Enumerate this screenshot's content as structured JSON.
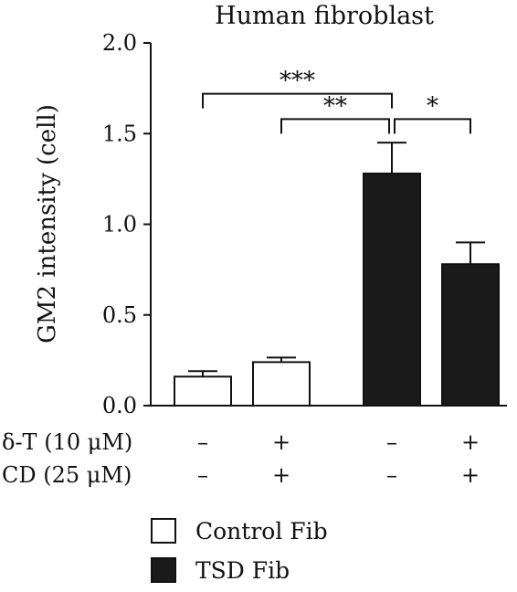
{
  "chart_data": {
    "type": "bar",
    "title": "Human fibroblast",
    "ylabel": "GM2 intensity (cell)",
    "xlabel": "",
    "ylim": [
      0,
      2.0
    ],
    "yticks": [
      "0.0",
      "0.5",
      "1.0",
      "1.5",
      "2.0"
    ],
    "bars": [
      {
        "group": "Control Fib",
        "value": 0.16,
        "error": 0.03
      },
      {
        "group": "Control Fib",
        "value": 0.24,
        "error": 0.025
      },
      {
        "group": "TSD Fib",
        "value": 1.28,
        "error": 0.17
      },
      {
        "group": "TSD Fib",
        "value": 0.78,
        "error": 0.12
      }
    ],
    "conditions": [
      {
        "label": "δ-T (10 μM)",
        "values": [
          "–",
          "+",
          "–",
          "+"
        ]
      },
      {
        "label": "CD (25 μM)",
        "values": [
          "–",
          "+",
          "–",
          "+"
        ]
      }
    ],
    "significance": [
      {
        "from": 0,
        "to": 2,
        "label": "***",
        "y": 1.72
      },
      {
        "from": 1,
        "to": 2,
        "label": "**",
        "y": 1.58
      },
      {
        "from": 2,
        "to": 3,
        "label": "*",
        "y": 1.58
      }
    ],
    "legend": [
      {
        "label": "Control Fib",
        "fill": "#ffffff"
      },
      {
        "label": "TSD Fib",
        "fill": "#1a1a1a"
      }
    ],
    "grid": false,
    "legend_position": "bottom"
  }
}
